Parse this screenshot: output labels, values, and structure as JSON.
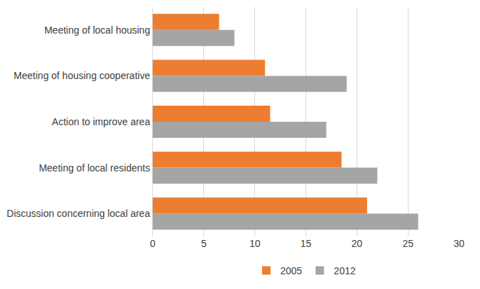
{
  "chart_data": {
    "type": "bar",
    "orientation": "horizontal",
    "categories": [
      "Meeting of local housing",
      "Meeting of housing cooperative",
      "Action to improve area",
      "Meeting of local residents",
      "Discussion concerning local area"
    ],
    "series": [
      {
        "name": "2005",
        "color": "#ed7d31",
        "values": [
          6.5,
          11,
          11.5,
          18.5,
          21
        ]
      },
      {
        "name": "2012",
        "color": "#a5a5a5",
        "values": [
          8,
          19,
          17,
          22,
          26
        ]
      }
    ],
    "xlim": [
      0,
      30
    ],
    "xticks": [
      0,
      5,
      10,
      15,
      20,
      25,
      30
    ],
    "grid": true,
    "legend": "bottom"
  }
}
